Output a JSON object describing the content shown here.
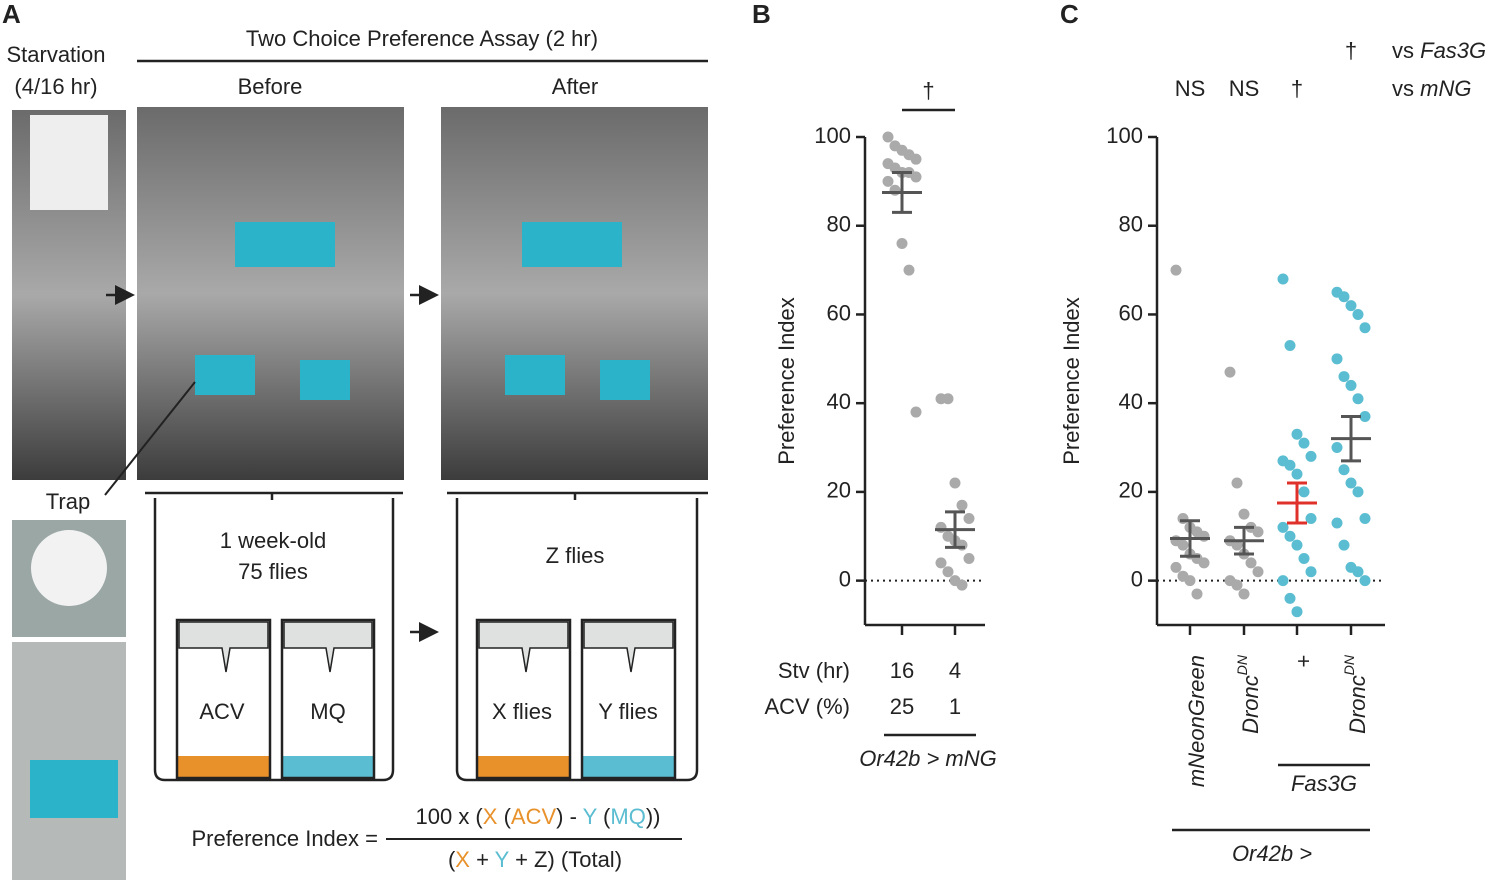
{
  "panel_a": {
    "letter": "A",
    "starvation": [
      "Starvation",
      "(4/16 hr)"
    ],
    "assay_title": "Two Choice Preference Assay (2 hr)",
    "before": "Before",
    "after": "After",
    "trap": "Trap",
    "before_diagram": {
      "flies": [
        "1 week-old",
        "75 flies"
      ],
      "vials": [
        "ACV",
        "MQ"
      ]
    },
    "after_diagram": {
      "flies": [
        "Z flies"
      ],
      "vials": [
        "X flies",
        "Y flies"
      ]
    },
    "formula": {
      "lhs": "Preference Index =",
      "numerator": [
        "100 x (",
        "X",
        " (",
        "ACV",
        ") - ",
        "Y",
        " (",
        "MQ",
        "))"
      ],
      "denominator": [
        "(",
        "X",
        " + ",
        "Y",
        " + Z) (Total)"
      ]
    }
  },
  "chart_data": [
    {
      "type": "strip",
      "panel": "B",
      "ylabel": "Preference Index",
      "ylim": [
        -10,
        100
      ],
      "yticks": [
        0,
        20,
        40,
        60,
        80,
        100
      ],
      "reference_line": 0,
      "significance": "†",
      "groups": [
        {
          "values": [
            100,
            98,
            97,
            96,
            95,
            94,
            93,
            92,
            92,
            91,
            90,
            88,
            76,
            70,
            38
          ],
          "mean": 87.5,
          "sem": 4.5,
          "color": "#aaaaaa",
          "mean_color": "#555555"
        },
        {
          "values": [
            41,
            41,
            22,
            17,
            14,
            12,
            10,
            9,
            8,
            5,
            4,
            2,
            0,
            -1
          ],
          "mean": 11.5,
          "sem": 4,
          "color": "#aaaaaa",
          "mean_color": "#555555"
        }
      ],
      "rows": [
        {
          "label": "Stv (hr)",
          "cells": [
            16,
            4
          ]
        },
        {
          "label": "ACV (%)",
          "cells": [
            25,
            1
          ]
        }
      ],
      "genotype": "Or42b > mNG"
    },
    {
      "type": "strip",
      "panel": "C",
      "ylabel": "Preference Index",
      "ylim": [
        -10,
        100
      ],
      "yticks": [
        0,
        20,
        40,
        60,
        80,
        100
      ],
      "reference_line": 0,
      "comparisons": [
        {
          "label": [
            "vs ",
            "Fas3G"
          ],
          "marks": [
            null,
            null,
            null,
            "†"
          ]
        },
        {
          "label": [
            "vs ",
            "mNG"
          ],
          "marks": [
            "NS",
            "NS",
            "†",
            null
          ]
        }
      ],
      "categories": [
        {
          "text": "mNeonGreen"
        },
        {
          "text": "Dronc",
          "sup": "DN"
        },
        {
          "text": "+"
        },
        {
          "text": "Dronc",
          "sup": "DN"
        }
      ],
      "groups": [
        {
          "values": [
            70,
            14,
            12,
            11,
            10,
            9,
            8,
            6,
            5,
            4,
            3,
            1,
            0,
            -3
          ],
          "mean": 9.5,
          "sem": 4,
          "color": "#aaaaaa",
          "mean_color": "#555555"
        },
        {
          "values": [
            47,
            22,
            15,
            12,
            11,
            9,
            8,
            6,
            4,
            2,
            0,
            -1,
            -3
          ],
          "mean": 9,
          "sem": 3,
          "color": "#aaaaaa",
          "mean_color": "#555555"
        },
        {
          "values": [
            68,
            53,
            33,
            31,
            28,
            27,
            26,
            24,
            20,
            14,
            12,
            10,
            8,
            5,
            2,
            0,
            -4,
            -7
          ],
          "mean": 17.5,
          "sem": 4.5,
          "color": "#5bbdd1",
          "mean_color": "#e0302a"
        },
        {
          "values": [
            65,
            64,
            62,
            60,
            57,
            50,
            46,
            44,
            41,
            37,
            30,
            25,
            22,
            20,
            14,
            13,
            8,
            3,
            2,
            0
          ],
          "mean": 32,
          "sem": 5,
          "color": "#5bbdd1",
          "mean_color": "#555555"
        }
      ],
      "subgroup_label": "Fas3G",
      "genotype": "Or42b >"
    }
  ]
}
